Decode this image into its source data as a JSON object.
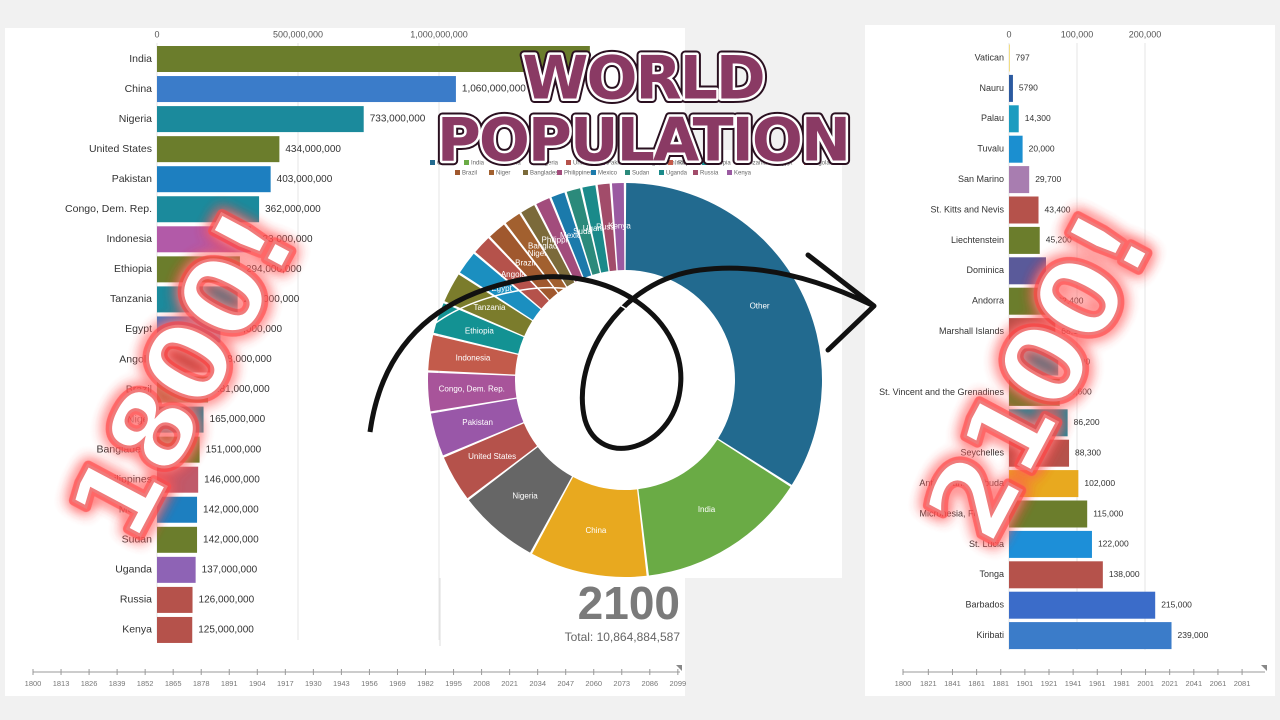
{
  "overlay": {
    "title_lines": [
      "WORLD",
      "POPULATION"
    ],
    "badges": [
      "1800!",
      "2100!"
    ]
  },
  "chart_data": [
    {
      "type": "bar",
      "horizontal": true,
      "grid": true,
      "categories": [
        "India",
        "China",
        "Nigeria",
        "United States",
        "Pakistan",
        "Congo, Dem. Rep.",
        "Indonesia",
        "Ethiopia",
        "Tanzania",
        "Egypt",
        "Angola",
        "Brazil",
        "Niger",
        "Bangladesh",
        "Philippines",
        "Mexico",
        "Sudan",
        "Uganda",
        "Russia",
        "Kenya"
      ],
      "values": [
        1535000000,
        1060000000,
        733000000,
        434000000,
        403000000,
        362000000,
        333000000,
        294000000,
        286000000,
        225000000,
        188000000,
        181000000,
        165000000,
        151000000,
        146000000,
        142000000,
        142000000,
        137000000,
        126000000,
        125000000
      ],
      "value_labels": [
        null,
        "1,060,000,000",
        "733,000,000",
        "434,000,000",
        "403,000,000",
        "362,000,000",
        "333,000,000",
        "294,000,000",
        "286,000,000",
        "225,000,000",
        "188,000,000",
        "181,000,000",
        "165,000,000",
        "151,000,000",
        "146,000,000",
        "142,000,000",
        "142,000,000",
        "137,000,000",
        "126,000,000",
        "125,000,000"
      ],
      "colors": [
        "#6b7d2c",
        "#3b7cc9",
        "#1b8a9c",
        "#6b7d2c",
        "#1d7fc0",
        "#1b8a9c",
        "#b25aa8",
        "#6b7d2c",
        "#1b8a9c",
        "#3b7cc9",
        "#b5524b",
        "#6b7d2c",
        "#1b8a9c",
        "#6b7d2c",
        "#c05a6a",
        "#1d7fc0",
        "#6b7d2c",
        "#8e63b5",
        "#b5524b",
        "#b5524b"
      ],
      "xlim": [
        0,
        1550000000
      ],
      "xticks": [
        0,
        {
          "value": 500000000,
          "label": "500,000,000"
        },
        {
          "value": 1000000000,
          "label": "1,000,000,000"
        }
      ],
      "timeline_lim": [
        1800,
        2100
      ],
      "timeline_ticks": [
        1800,
        1813,
        1826,
        1839,
        1852,
        1865,
        1878,
        1891,
        1904,
        1917,
        1930,
        1943,
        1956,
        1969,
        1982,
        1995,
        2008,
        2021,
        2034,
        2047,
        2060,
        2073,
        2086,
        2099
      ]
    },
    {
      "type": "donut",
      "year": "2100",
      "total": "Total: 10,864,884,587",
      "categories": [
        "Other",
        "India",
        "China",
        "Nigeria",
        "United States",
        "Pakistan",
        "Congo, Dem. Rep.",
        "Indonesia",
        "Ethiopia",
        "Tanzania",
        "Egypt",
        "Angola",
        "Brazil",
        "Niger",
        "Bangladesh",
        "Philippines",
        "Mexico",
        "Sudan",
        "Uganda",
        "Russia",
        "Kenya"
      ],
      "values": [
        3697000000,
        1535000000,
        1060000000,
        733000000,
        434000000,
        403000000,
        362000000,
        333000000,
        294000000,
        286000000,
        225000000,
        188000000,
        181000000,
        165000000,
        151000000,
        146000000,
        142000000,
        142000000,
        137000000,
        126000000,
        125000000
      ],
      "colors": [
        "#226a8f",
        "#6aab45",
        "#e8a91f",
        "#666666",
        "#b5524b",
        "#9957a8",
        "#a8549a",
        "#c35b4b",
        "#139293",
        "#7b7c2c",
        "#1b8fc0",
        "#b5524b",
        "#a0582e",
        "#a2602f",
        "#7b6a3a",
        "#a24c7c",
        "#1b7aab",
        "#2b8a7b",
        "#1a8a8a",
        "#a24c6a",
        "#9a5aa1"
      ]
    },
    {
      "type": "bar",
      "horizontal": true,
      "grid": true,
      "categories": [
        "Vatican",
        "Nauru",
        "Palau",
        "Tuvalu",
        "San Marino",
        "St. Kitts and Nevis",
        "Liechtenstein",
        "Dominica",
        "Andorra",
        "Marshall Islands",
        null,
        "St. Vincent and the Grenadines",
        "Grenada",
        "Seychelles",
        "Antigua and Barbuda",
        "Micronesia, Fed. Sts.",
        "St. Lucia",
        "Tonga",
        "Barbados",
        "Kiribati"
      ],
      "values": [
        797,
        5790,
        14300,
        20000,
        29700,
        43400,
        45200,
        54400,
        62400,
        68100,
        72400,
        74600,
        86200,
        88300,
        102000,
        115000,
        122000,
        138000,
        215000,
        239000
      ],
      "value_labels": [
        "797",
        "5790",
        "14,300",
        "20,000",
        "29,700",
        "43,400",
        "45,200",
        "54,400",
        "62,400",
        "68,100",
        "72,400",
        "74,600",
        "86,200",
        "88,300",
        "102,000",
        "115,000",
        "122,000",
        "138,000",
        "215,000",
        "239,000"
      ],
      "colors": [
        "#e7c21c",
        "#2b5aa0",
        "#1b9cc0",
        "#1b8fd0",
        "#a87db0",
        "#b5524b",
        "#6b7d2c",
        "#5a5a9a",
        "#6b7d2c",
        "#b5524b",
        "#1b8a9c",
        "#6b7d2c",
        "#1b8a9c",
        "#b5524b",
        "#e8a91f",
        "#6b7d2c",
        "#1d8fd8",
        "#b5524b",
        "#3b6cc9",
        "#3b7cc9"
      ],
      "xlim": [
        0,
        260000
      ],
      "xticks": [
        0,
        {
          "value": 100000,
          "label": "100,000"
        },
        {
          "value": 200000,
          "label": "200,000"
        }
      ],
      "timeline_lim": [
        1800,
        2100
      ],
      "timeline_ticks": [
        1800,
        1821,
        1841,
        1861,
        1881,
        1901,
        1921,
        1941,
        1961,
        1981,
        2001,
        2021,
        2041,
        2061,
        2081
      ]
    }
  ]
}
